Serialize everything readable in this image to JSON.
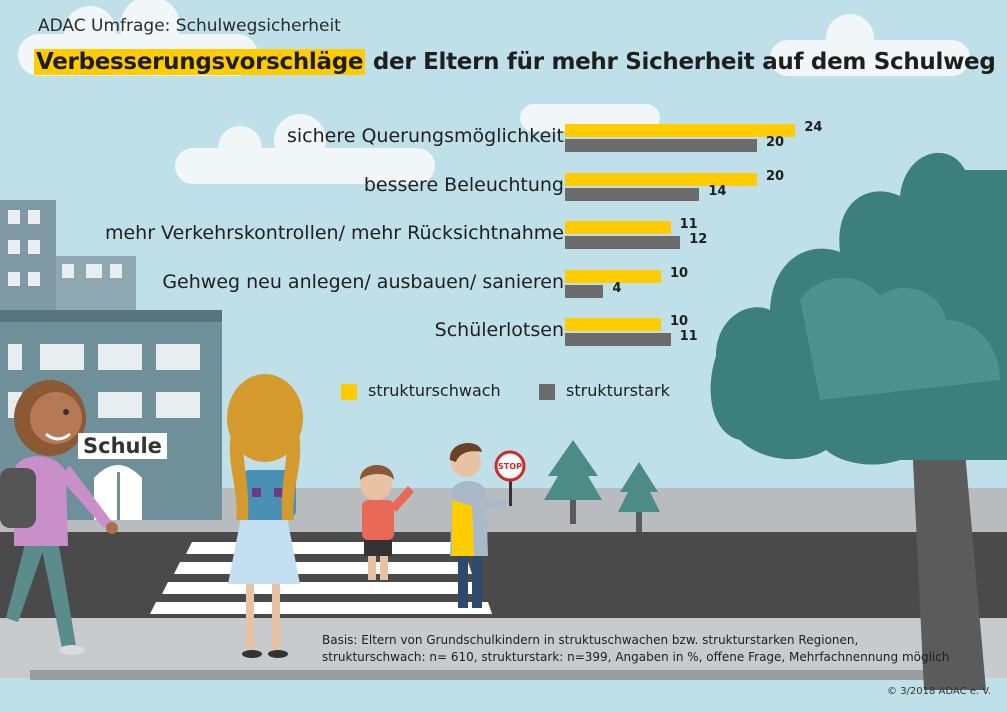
{
  "kicker": "ADAC Umfrage: Schulwegsicherheit",
  "headline": {
    "highlight": "Verbesserungsvorschläge",
    "rest": " der Eltern für mehr Sicherheit auf dem Schulweg"
  },
  "chart_data": {
    "type": "bar",
    "orientation": "horizontal",
    "categories": [
      "sichere Querungsmöglichkeit",
      "bessere Beleuchtung",
      "mehr Verkehrskontrollen/ mehr Rücksichtnahme",
      "Gehweg neu anlegen/ ausbauen/ sanieren",
      "Schülerlotsen"
    ],
    "series": [
      {
        "name": "strukturschwach",
        "values": [
          24,
          20,
          11,
          10,
          10
        ],
        "color": "#ffcc00"
      },
      {
        "name": "strukturstark",
        "values": [
          20,
          14,
          12,
          4,
          11
        ],
        "color": "#6b6b6b"
      }
    ],
    "unit": "%",
    "legend_position": "bottom",
    "grid": false
  },
  "scene": {
    "school_sign": "Schule",
    "stop_sign": "STOP"
  },
  "footnote": {
    "line1": "Basis: Eltern von Grundschulkindern in struktuschwachen bzw. strukturstarken Regionen,",
    "line2": "strukturschwach: n= 610, strukturstark: n=399, Angaben in %, offene Frage, Mehrfachnennung möglich"
  },
  "credit": "© 3/2018  ADAC e. V."
}
